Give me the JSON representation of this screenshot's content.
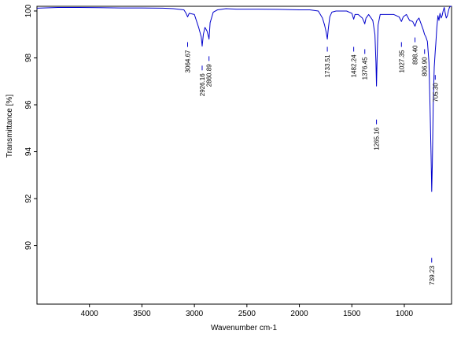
{
  "chart_data": {
    "type": "line",
    "title": "",
    "xlabel": "Wavenumber cm-1",
    "ylabel": "Transmittance [%]",
    "xlim": [
      4500,
      550
    ],
    "ylim": [
      87.5,
      100.2
    ],
    "x_reversed": true,
    "grid": false,
    "line_color": "#0000cc",
    "x_ticks": [
      {
        "value": 4000,
        "label": "4000"
      },
      {
        "value": 3500,
        "label": "3500"
      },
      {
        "value": 3000,
        "label": "3000"
      },
      {
        "value": 2500,
        "label": "2500"
      },
      {
        "value": 2000,
        "label": "2000"
      },
      {
        "value": 1500,
        "label": "1500"
      },
      {
        "value": 1000,
        "label": "1000"
      }
    ],
    "y_ticks": [
      {
        "value": 100,
        "label": "100"
      },
      {
        "value": 98,
        "label": "98"
      },
      {
        "value": 96,
        "label": "96"
      },
      {
        "value": 94,
        "label": "94"
      },
      {
        "value": 92,
        "label": "92"
      },
      {
        "value": 90,
        "label": "90"
      }
    ],
    "series": [
      {
        "x": [
          4500,
          4300,
          4100,
          3900,
          3700,
          3500,
          3300,
          3200,
          3100,
          3080,
          3064.67,
          3050,
          3000,
          2960,
          2935,
          2926.16,
          2915,
          2900,
          2880,
          2865,
          2860.89,
          2850,
          2820,
          2780,
          2700,
          2600,
          2400,
          2200,
          2000,
          1900,
          1820,
          1780,
          1760,
          1745,
          1733.51,
          1725,
          1710,
          1690,
          1650,
          1600,
          1550,
          1500,
          1482.24,
          1470,
          1440,
          1400,
          1385,
          1376.45,
          1365,
          1340,
          1300,
          1280,
          1270,
          1265.16,
          1260,
          1250,
          1230,
          1200,
          1150,
          1100,
          1050,
          1027.35,
          1010,
          980,
          950,
          920,
          898.4,
          880,
          860,
          840,
          820,
          806.9,
          795,
          780,
          765,
          755,
          745,
          739.23,
          733,
          725,
          715,
          705.3,
          700,
          690,
          680,
          670,
          660,
          650,
          640,
          630,
          620,
          610,
          600,
          590,
          580,
          570,
          560,
          550
        ],
        "y": [
          100.12,
          100.15,
          100.15,
          100.14,
          100.13,
          100.13,
          100.12,
          100.1,
          100.05,
          99.9,
          99.75,
          99.9,
          99.85,
          99.3,
          98.9,
          98.5,
          99.0,
          99.3,
          99.15,
          98.9,
          98.8,
          99.5,
          99.95,
          100.05,
          100.1,
          100.08,
          100.08,
          100.07,
          100.05,
          100.05,
          100.0,
          99.7,
          99.4,
          99.1,
          98.8,
          99.2,
          99.75,
          99.95,
          100.0,
          100.0,
          100.0,
          99.9,
          99.65,
          99.85,
          99.85,
          99.7,
          99.55,
          99.45,
          99.7,
          99.85,
          99.6,
          99.0,
          97.8,
          96.8,
          97.9,
          99.4,
          99.85,
          99.85,
          99.85,
          99.85,
          99.75,
          99.55,
          99.75,
          99.85,
          99.6,
          99.55,
          99.35,
          99.6,
          99.7,
          99.45,
          99.2,
          99.0,
          98.9,
          98.7,
          97.8,
          96.0,
          93.8,
          92.3,
          93.5,
          96.0,
          97.6,
          98.3,
          98.6,
          99.3,
          99.8,
          99.6,
          99.9,
          99.7,
          99.8,
          100.0,
          100.15,
          99.9,
          99.7,
          99.8,
          100.0,
          100.15,
          100.2,
          100.2
        ]
      }
    ],
    "annotations": [
      {
        "x": 3064.67,
        "label": "3064.67",
        "y_text": 98.2
      },
      {
        "x": 2926.16,
        "label": "2926.16",
        "y_text": 97.2
      },
      {
        "x": 2860.89,
        "label": "2860.89",
        "y_text": 97.6
      },
      {
        "x": 1733.51,
        "label": "1733.51",
        "y_text": 98.0
      },
      {
        "x": 1482.24,
        "label": "1482.24",
        "y_text": 98.0
      },
      {
        "x": 1376.45,
        "label": "1376.45",
        "y_text": 97.9
      },
      {
        "x": 1265.16,
        "label": "1265.16",
        "y_text": 94.9
      },
      {
        "x": 1027.35,
        "label": "1027.35",
        "y_text": 98.2
      },
      {
        "x": 898.4,
        "label": "898.40",
        "y_text": 98.4
      },
      {
        "x": 806.9,
        "label": "806.90",
        "y_text": 97.9
      },
      {
        "x": 705.3,
        "label": "705.30",
        "y_text": 96.8
      },
      {
        "x": 739.23,
        "label": "739.23",
        "y_text": 89.0
      }
    ]
  }
}
